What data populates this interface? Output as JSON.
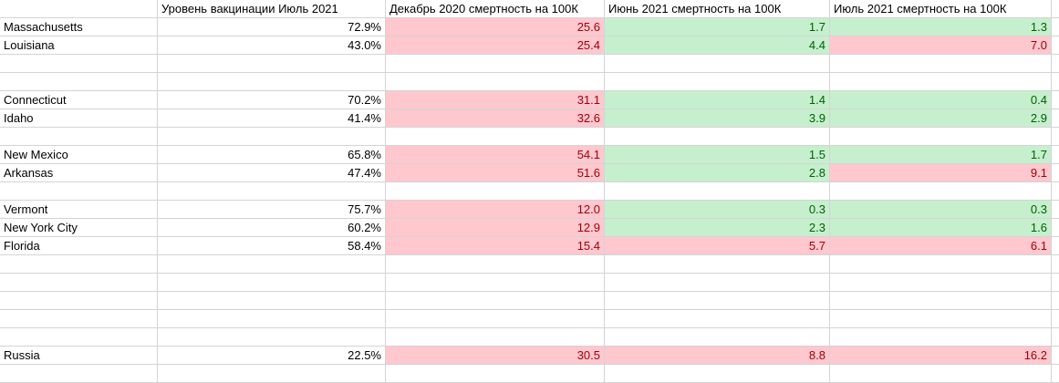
{
  "headers": [
    "",
    "Уровень вакцинации Июль 2021",
    "Декабрь 2020 смертность на 100К",
    "Июнь 2021 смертность на 100К",
    "Июль 2021 смертность на 100К"
  ],
  "rows": [
    {
      "name": "Massachusetts",
      "vax": "72.9%",
      "dec2020": "25.6",
      "jun2021": "1.7",
      "jul2021": "1.3",
      "s": [
        "bad",
        "good",
        "good"
      ]
    },
    {
      "name": "Louisiana",
      "vax": "43.0%",
      "dec2020": "25.4",
      "jun2021": "4.4",
      "jul2021": "7.0",
      "s": [
        "bad",
        "good",
        "bad"
      ]
    },
    {
      "name": "",
      "vax": "",
      "dec2020": "",
      "jun2021": "",
      "jul2021": "",
      "s": [
        "",
        "",
        ""
      ]
    },
    {
      "name": "",
      "vax": "",
      "dec2020": "",
      "jun2021": "",
      "jul2021": "",
      "s": [
        "",
        "",
        ""
      ]
    },
    {
      "name": "Connecticut",
      "vax": "70.2%",
      "dec2020": "31.1",
      "jun2021": "1.4",
      "jul2021": "0.4",
      "s": [
        "bad",
        "good",
        "good"
      ]
    },
    {
      "name": "Idaho",
      "vax": "41.4%",
      "dec2020": "32.6",
      "jun2021": "3.9",
      "jul2021": "2.9",
      "s": [
        "bad",
        "good",
        "good"
      ]
    },
    {
      "name": "",
      "vax": "",
      "dec2020": "",
      "jun2021": "",
      "jul2021": "",
      "s": [
        "",
        "",
        ""
      ]
    },
    {
      "name": "New Mexico",
      "vax": "65.8%",
      "dec2020": "54.1",
      "jun2021": "1.5",
      "jul2021": "1.7",
      "s": [
        "bad",
        "good",
        "good"
      ]
    },
    {
      "name": "Arkansas",
      "vax": "47.4%",
      "dec2020": "51.6",
      "jun2021": "2.8",
      "jul2021": "9.1",
      "s": [
        "bad",
        "good",
        "bad"
      ]
    },
    {
      "name": "",
      "vax": "",
      "dec2020": "",
      "jun2021": "",
      "jul2021": "",
      "s": [
        "",
        "",
        ""
      ]
    },
    {
      "name": "Vermont",
      "vax": "75.7%",
      "dec2020": "12.0",
      "jun2021": "0.3",
      "jul2021": "0.3",
      "s": [
        "bad",
        "good",
        "good"
      ]
    },
    {
      "name": "New York City",
      "vax": "60.2%",
      "dec2020": "12.9",
      "jun2021": "2.3",
      "jul2021": "1.6",
      "s": [
        "bad",
        "good",
        "good"
      ]
    },
    {
      "name": "Florida",
      "vax": "58.4%",
      "dec2020": "15.4",
      "jun2021": "5.7",
      "jul2021": "6.1",
      "s": [
        "bad",
        "bad",
        "bad"
      ]
    },
    {
      "name": "",
      "vax": "",
      "dec2020": "",
      "jun2021": "",
      "jul2021": "",
      "s": [
        "",
        "",
        ""
      ]
    },
    {
      "name": "",
      "vax": "",
      "dec2020": "",
      "jun2021": "",
      "jul2021": "",
      "s": [
        "",
        "",
        ""
      ]
    },
    {
      "name": "",
      "vax": "",
      "dec2020": "",
      "jun2021": "",
      "jul2021": "",
      "s": [
        "",
        "",
        ""
      ]
    },
    {
      "name": "",
      "vax": "",
      "dec2020": "",
      "jun2021": "",
      "jul2021": "",
      "s": [
        "",
        "",
        ""
      ]
    },
    {
      "name": "",
      "vax": "",
      "dec2020": "",
      "jun2021": "",
      "jul2021": "",
      "s": [
        "",
        "",
        ""
      ]
    },
    {
      "name": "Russia",
      "vax": "22.5%",
      "dec2020": "30.5",
      "jun2021": "8.8",
      "jul2021": "16.2",
      "s": [
        "bad",
        "bad",
        "bad"
      ]
    },
    {
      "name": "",
      "vax": "",
      "dec2020": "",
      "jun2021": "",
      "jul2021": "",
      "s": [
        "",
        "",
        ""
      ]
    }
  ],
  "colors": {
    "bad_fill": "#ffc7ce",
    "bad_text": "#9c0006",
    "good_fill": "#c6efce",
    "good_text": "#006100",
    "grid": "#d4d4d4"
  }
}
